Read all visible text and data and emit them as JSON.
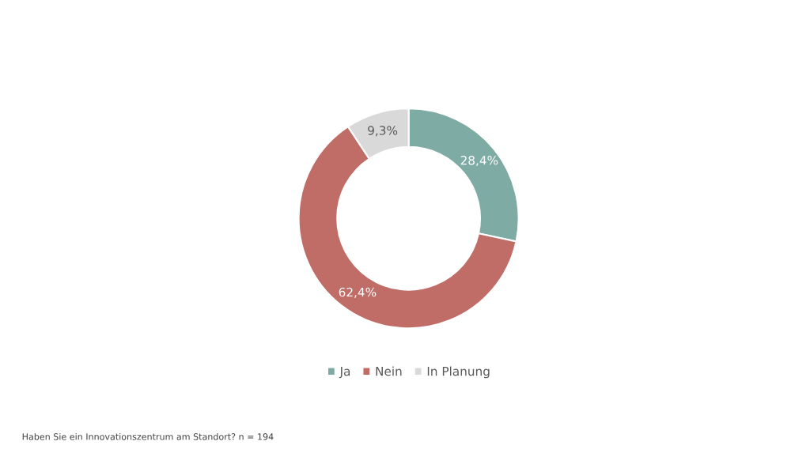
{
  "chart_data": {
    "type": "donut",
    "categories": [
      "Ja",
      "Nein",
      "In Planung"
    ],
    "values": [
      28.4,
      62.4,
      9.3
    ],
    "colors": [
      "#7faba5",
      "#c06c67",
      "#d9d9d9"
    ],
    "value_labels": [
      "28,4%",
      "62,4%",
      "9,3%"
    ],
    "legend": "bottom",
    "annotations": [
      "Haben Sie ein Innovationszentrum am Standort? n = 194"
    ]
  }
}
